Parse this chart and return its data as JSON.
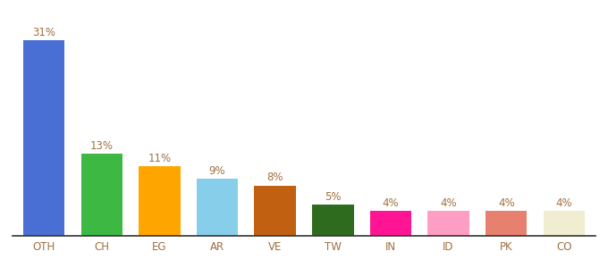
{
  "categories": [
    "OTH",
    "CH",
    "EG",
    "AR",
    "VE",
    "TW",
    "IN",
    "ID",
    "PK",
    "CO"
  ],
  "values": [
    31,
    13,
    11,
    9,
    8,
    5,
    4,
    4,
    4,
    4
  ],
  "bar_colors": [
    "#4A6FD4",
    "#3CB843",
    "#FFA500",
    "#87CEEB",
    "#C06010",
    "#2E6B1E",
    "#FF1493",
    "#FF9EC4",
    "#E88070",
    "#F0EDD0"
  ],
  "ylim": [
    0,
    34
  ],
  "label_color": "#A07040",
  "label_fontsize": 8.5,
  "tick_fontsize": 8.5,
  "tick_color": "#A07040",
  "background_color": "#ffffff",
  "bar_width": 0.72
}
